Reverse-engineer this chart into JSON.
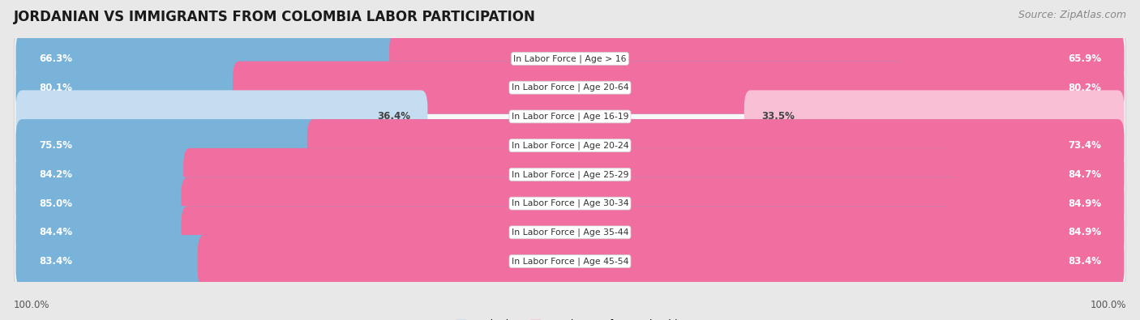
{
  "title": "JORDANIAN VS IMMIGRANTS FROM COLOMBIA LABOR PARTICIPATION",
  "source": "Source: ZipAtlas.com",
  "categories": [
    "In Labor Force | Age > 16",
    "In Labor Force | Age 20-64",
    "In Labor Force | Age 16-19",
    "In Labor Force | Age 20-24",
    "In Labor Force | Age 25-29",
    "In Labor Force | Age 30-34",
    "In Labor Force | Age 35-44",
    "In Labor Force | Age 45-54"
  ],
  "jordanian_values": [
    66.3,
    80.1,
    36.4,
    75.5,
    84.2,
    85.0,
    84.4,
    83.4
  ],
  "colombia_values": [
    65.9,
    80.2,
    33.5,
    73.4,
    84.7,
    84.9,
    84.9,
    83.4
  ],
  "jordanian_color": "#7ab3d9",
  "jordanian_color_light": "#c5ddf0",
  "colombia_color": "#f06fa0",
  "colombia_color_light": "#f9c0d5",
  "row_bg_color": "#ffffff",
  "outer_bg_color": "#e8e8e8",
  "row_border_color": "#d0d0d0",
  "max_value": 100.0,
  "legend_jordanian": "Jordanian",
  "legend_colombia": "Immigrants from Colombia",
  "axis_label": "100.0%",
  "title_fontsize": 12,
  "source_fontsize": 9,
  "bar_label_fontsize": 8.5,
  "category_fontsize": 7.8,
  "legend_fontsize": 9,
  "axis_fontsize": 8.5
}
